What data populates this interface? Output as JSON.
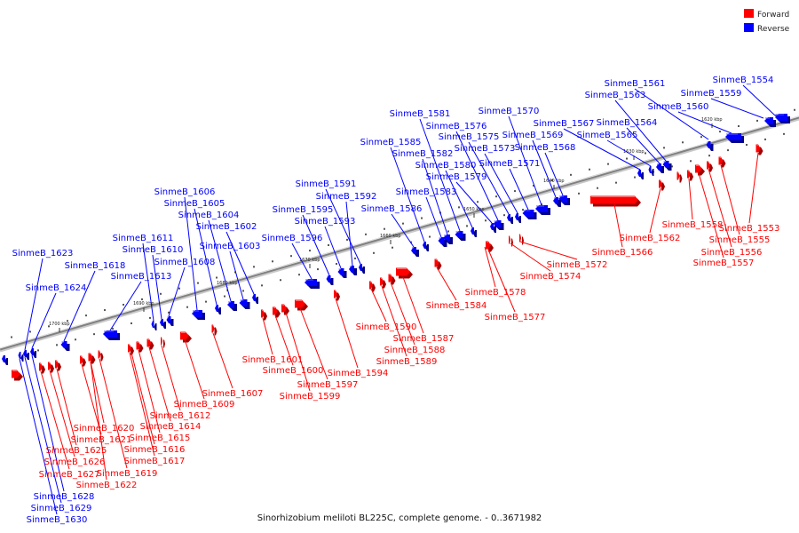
{
  "legend": [
    {
      "label": "Forward",
      "color": "#ff0000"
    },
    {
      "label": "Reverse",
      "color": "#0000ff"
    }
  ],
  "colors": {
    "forward": "#ff0000",
    "reverse": "#0000ff",
    "axis": "#808080"
  },
  "caption": "Sinorhizobium meliloti BL225C, complete genome. - 0..3671982",
  "ticks": [
    "1620 kbp",
    "1630 kbp",
    "1640 kbp",
    "1650 kbp",
    "1660 kbp",
    "1670 kbp",
    "1680 kbp",
    "1690 kbp",
    "1700 kbp"
  ],
  "reverse_genes": [
    "SinmeB_1554",
    "SinmeB_1559",
    "SinmeB_1560",
    "SinmeB_1561",
    "SinmeB_1563",
    "SinmeB_1564",
    "SinmeB_1565",
    "SinmeB_1567",
    "SinmeB_1568",
    "SinmeB_1569",
    "SinmeB_1570",
    "SinmeB_1571",
    "SinmeB_1573",
    "SinmeB_1575",
    "SinmeB_1576",
    "SinmeB_1579",
    "SinmeB_1580",
    "SinmeB_1581",
    "SinmeB_1582",
    "SinmeB_1583",
    "SinmeB_1585",
    "SinmeB_1586",
    "SinmeB_1591",
    "SinmeB_1592",
    "SinmeB_1593",
    "SinmeB_1595",
    "SinmeB_1596",
    "SinmeB_1602",
    "SinmeB_1603",
    "SinmeB_1604",
    "SinmeB_1605",
    "SinmeB_1606",
    "SinmeB_1608",
    "SinmeB_1610",
    "SinmeB_1611",
    "SinmeB_1613",
    "SinmeB_1618",
    "SinmeB_1623",
    "SinmeB_1624",
    "SinmeB_1628",
    "SinmeB_1629",
    "SinmeB_1630"
  ],
  "forward_genes": [
    "SinmeB_1553",
    "SinmeB_1555",
    "SinmeB_1556",
    "SinmeB_1557",
    "SinmeB_1558",
    "SinmeB_1562",
    "SinmeB_1566",
    "SinmeB_1572",
    "SinmeB_1574",
    "SinmeB_1577",
    "SinmeB_1578",
    "SinmeB_1584",
    "SinmeB_1587",
    "SinmeB_1588",
    "SinmeB_1589",
    "SinmeB_1590",
    "SinmeB_1594",
    "SinmeB_1597",
    "SinmeB_1599",
    "SinmeB_1600",
    "SinmeB_1601",
    "SinmeB_1607",
    "SinmeB_1609",
    "SinmeB_1612",
    "SinmeB_1614",
    "SinmeB_1615",
    "SinmeB_1616",
    "SinmeB_1617",
    "SinmeB_1619",
    "SinmeB_1620",
    "SinmeB_1621",
    "SinmeB_1622",
    "SinmeB_1625",
    "SinmeB_1626",
    "SinmeB_1627"
  ]
}
